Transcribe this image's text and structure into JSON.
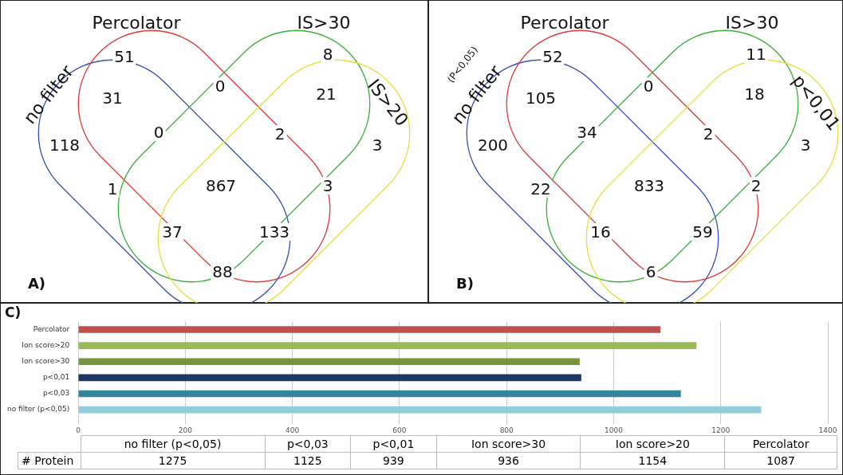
{
  "chart_data": [
    {
      "type": "other",
      "title": "A)",
      "annotations": [
        "no filter",
        "Percolator",
        "IS>30",
        "IS>20",
        "51",
        "8",
        "31",
        "0",
        "21",
        "0",
        "2",
        "118",
        "3",
        "1",
        "867",
        "3",
        "37",
        "133",
        "88"
      ]
    },
    {
      "type": "other",
      "title": "B)",
      "annotations": [
        "no filter",
        "Percolator",
        "IS>30",
        "p<0,01",
        "52",
        "11",
        "105",
        "0",
        "18",
        "34",
        "2",
        "200",
        "3",
        "22",
        "833",
        "2",
        "16",
        "59",
        "6",
        "(P<0,05)"
      ]
    },
    {
      "type": "bar",
      "orientation": "horizontal",
      "title": "C)",
      "categories": [
        "Percolator",
        "Ion score>20",
        "Ion score>30",
        "p<0,01",
        "p<0,03",
        "no filter (p<0,05)"
      ],
      "values": [
        1087,
        1154,
        936,
        939,
        1125,
        1275
      ],
      "colors": [
        "#c0504d",
        "#9bbb59",
        "#77933c",
        "#1f3864",
        "#31859c",
        "#92cddc"
      ],
      "xlim": [
        0,
        1400
      ],
      "xticks": [
        0,
        200,
        400,
        600,
        800,
        1000,
        1200,
        1400
      ],
      "grid": "x"
    },
    {
      "type": "other",
      "categories": [
        "no filter (p<0,05)",
        "p<0,03",
        "p<0,01",
        "Ion score>30",
        "Ion score>20",
        "Percolator"
      ],
      "values": [
        1275,
        1125,
        939,
        936,
        1154,
        1087
      ],
      "data_labels": true,
      "annotations": [
        "# Protein"
      ]
    }
  ]
}
